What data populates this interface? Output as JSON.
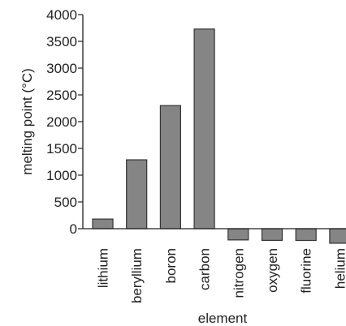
{
  "chart_data": {
    "type": "bar",
    "title": "",
    "xlabel": "element",
    "ylabel": "melting point (°C)",
    "categories": [
      "lithium",
      "beryllium",
      "boron",
      "carbon",
      "nitrogen",
      "oxygen",
      "fluorine",
      "helium"
    ],
    "values": [
      180,
      1287,
      2300,
      3730,
      -210,
      -218,
      -220,
      -272
    ],
    "ylim": [
      -272,
      4000
    ],
    "yticks": [
      0,
      500,
      1000,
      1500,
      2000,
      2500,
      3000,
      3500,
      4000
    ],
    "bar_color": "#858585",
    "grid": false
  }
}
